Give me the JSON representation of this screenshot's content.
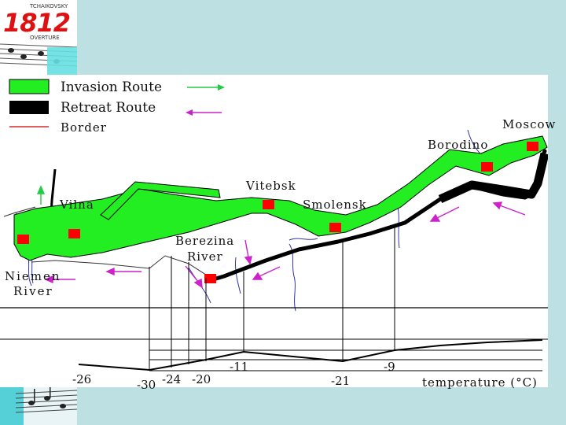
{
  "logo": {
    "composer": "TCHAIKOVSKY",
    "number": "1812",
    "subtitle": "OVERTURE"
  },
  "legend": {
    "invasion": "Invasion Route",
    "retreat": "Retreat Route",
    "border": "Border"
  },
  "places": {
    "moscow": "Moscow",
    "borodino": "Borodino",
    "vitebsk": "Vitebsk",
    "smolensk": "Smolensk",
    "vilna": "Vilna",
    "berezina_line1": "Berezina",
    "berezina_line2": "River",
    "niemen_line1": "Niemen",
    "niemen_line2": "River"
  },
  "temperatures": {
    "t1": "-26",
    "t2": "-30",
    "t3": "-24",
    "t4": "-20",
    "t5": "-11",
    "t6": "-21",
    "t7": "-9",
    "axis_label": "temperature (°C)"
  },
  "colors": {
    "invasion": "#22ee22",
    "retreat": "#000000",
    "border": "#cc0000",
    "marker": "#ff0000",
    "invasion_arrow": "#22cc44",
    "retreat_arrow": "#cc22cc",
    "river": "#3333aa"
  }
}
